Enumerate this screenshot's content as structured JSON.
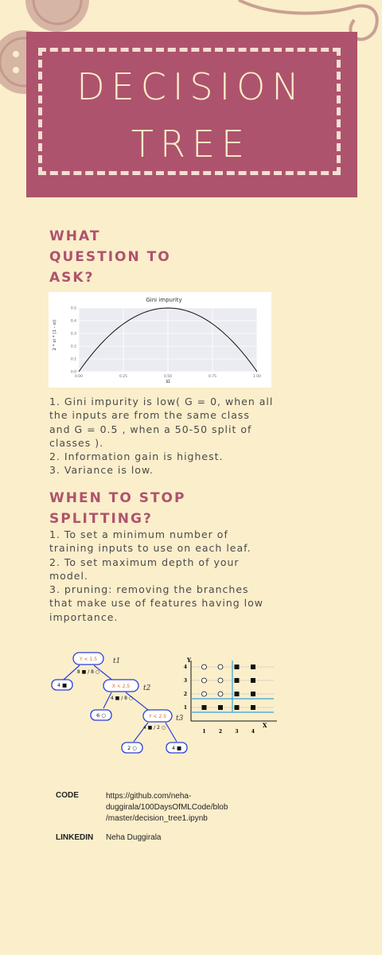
{
  "banner": {
    "title_line1": "DECISION",
    "title_line2": "TREE"
  },
  "section1": {
    "heading_lines": [
      "WHAT",
      "QUESTION TO",
      "ASK?"
    ],
    "lines": [
      "1. Gini impurity is low(  G = 0, when all",
      "the inputs are from the same class",
      "and  G = 0.5 , when a 50-50 split of",
      "classes ).",
      "2. Information gain is highest.",
      "3. Variance is low."
    ]
  },
  "gini_chart": {
    "chart_data": {
      "type": "line",
      "title": "Gini impurity",
      "xlabel": "xi",
      "ylabel": "2 * xi * (1 - xi)",
      "x_ticks": [
        "0.00",
        "0.25",
        "0.50",
        "0.75",
        "1.00"
      ],
      "y_ticks": [
        "0.5",
        "0.4",
        "0.3",
        "0.2",
        "0.1",
        "0.0"
      ],
      "xlim": [
        0,
        1
      ],
      "ylim": [
        0,
        0.5
      ],
      "series": [
        {
          "x": [
            0,
            0.1,
            0.2,
            0.3,
            0.4,
            0.5,
            0.6,
            0.7,
            0.8,
            0.9,
            1.0
          ],
          "y": [
            0,
            0.18,
            0.32,
            0.42,
            0.48,
            0.5,
            0.48,
            0.42,
            0.32,
            0.18,
            0
          ]
        }
      ],
      "grid": true
    }
  },
  "section2": {
    "heading_lines": [
      "WHEN TO STOP",
      "SPLITTING?"
    ],
    "lines": [
      "1. To set a minimum number of",
      "training inputs to use on each leaf.",
      "2. To set maximum depth of your",
      "model.",
      "3.  pruning: removing the branches",
      "that make use of features having low",
      "importance."
    ]
  },
  "tree": {
    "n1": "Y < 1.5",
    "t1": "t1",
    "c1": "8 ■ / 8 ○",
    "leaf1": "4 ■",
    "n2": "X < 2.5",
    "t2": "t2",
    "c2": "4 ■ / 8 ○",
    "leaf2": "6 ○",
    "n3": "Y < 2.5",
    "t3": "t3",
    "c3": "4 ■ / 2 ○",
    "leaf3": "2 ○",
    "leaf4": "4 ■"
  },
  "scatter": {
    "y_label": "Y",
    "x_label": "X",
    "x_ticks": [
      "1",
      "2",
      "3",
      "4"
    ],
    "y_ticks": [
      "1",
      "2",
      "3",
      "4"
    ]
  },
  "footer": {
    "code_label": "CODE",
    "code_lines": [
      "https://github.com/neha-",
      "duggirala/100DaysOfMLCode/blob",
      "/master/decision_tree1.ipynb"
    ],
    "linkedin_label": "LINKEDIN",
    "linkedin_value": "Neha Duggirala"
  },
  "colors": {
    "background": "#fbeecb",
    "banner": "#ae536d",
    "heading": "#ae536d",
    "button": "#d7b5a5"
  }
}
